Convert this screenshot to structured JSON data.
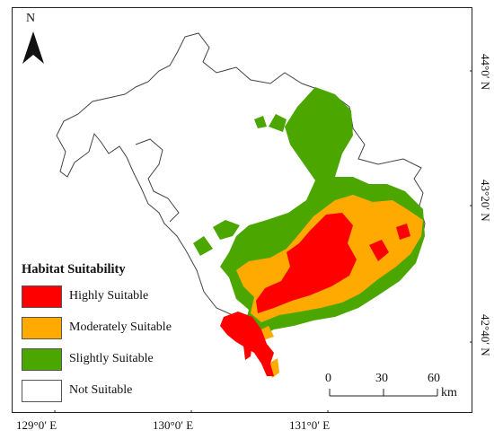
{
  "north_arrow": {
    "label": "N"
  },
  "longitude_labels": [
    "129°0′ E",
    "130°0′ E",
    "131°0′ E"
  ],
  "latitude_labels": [
    "44°0′ N",
    "43°20′ N",
    "42°40′ N"
  ],
  "legend": {
    "title": "Habitat Suitability",
    "items": [
      {
        "label": "Highly Suitable",
        "color": "#ff0000"
      },
      {
        "label": "Moderately Suitable",
        "color": "#ffaa00"
      },
      {
        "label": "Slightly Suitable",
        "color": "#4ca600"
      },
      {
        "label": "Not Suitable",
        "color": "#ffffff"
      }
    ]
  },
  "scale_bar": {
    "ticks": [
      "0",
      "30",
      "60"
    ],
    "unit": "km"
  },
  "colors": {
    "boundary": "#444444",
    "frame": "#222222"
  }
}
